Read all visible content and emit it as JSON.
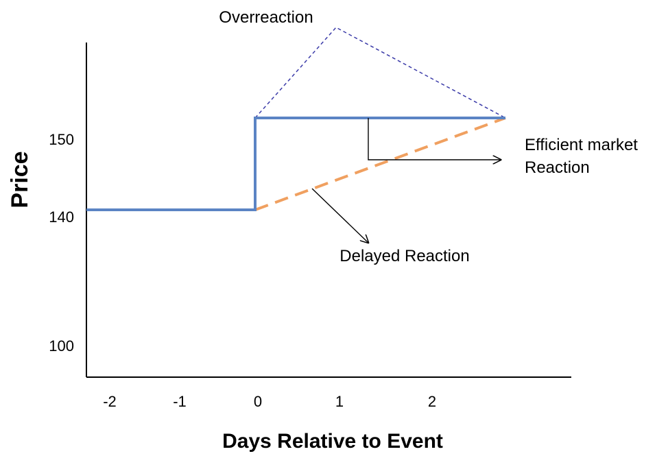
{
  "chart_data": {
    "type": "line",
    "title": "",
    "xlabel": "Days Relative to Event",
    "ylabel": "Price",
    "x_ticks": [
      "-2",
      "-1",
      "0",
      "1",
      "2"
    ],
    "y_ticks": [
      "100",
      "140",
      "150"
    ],
    "series": [
      {
        "key": "efficient",
        "points": [
          {
            "x": -2.3,
            "y": 140
          },
          {
            "x": 0,
            "y": 140
          },
          {
            "x": 0,
            "y": 151.5
          },
          {
            "x": 3.1,
            "y": 151.5
          }
        ],
        "color": "#5b84c4",
        "style": "solid"
      },
      {
        "key": "delayed",
        "points": [
          {
            "x": 0,
            "y": 140
          },
          {
            "x": 3.1,
            "y": 151.5
          }
        ],
        "color": "#f0a060",
        "style": "dashed"
      },
      {
        "key": "overreaction",
        "points": [
          {
            "x": 0,
            "y": 151.5
          },
          {
            "x": 1,
            "y": 165
          },
          {
            "x": 3.1,
            "y": 151.5
          }
        ],
        "color": "#3a3aa8",
        "style": "dotted"
      }
    ],
    "annotations": {
      "overreaction": "Overreaction",
      "efficient_line1": "Efficient market",
      "efficient_line2": "Reaction",
      "delayed": "Delayed Reaction"
    },
    "grid": false,
    "legend": "none"
  }
}
